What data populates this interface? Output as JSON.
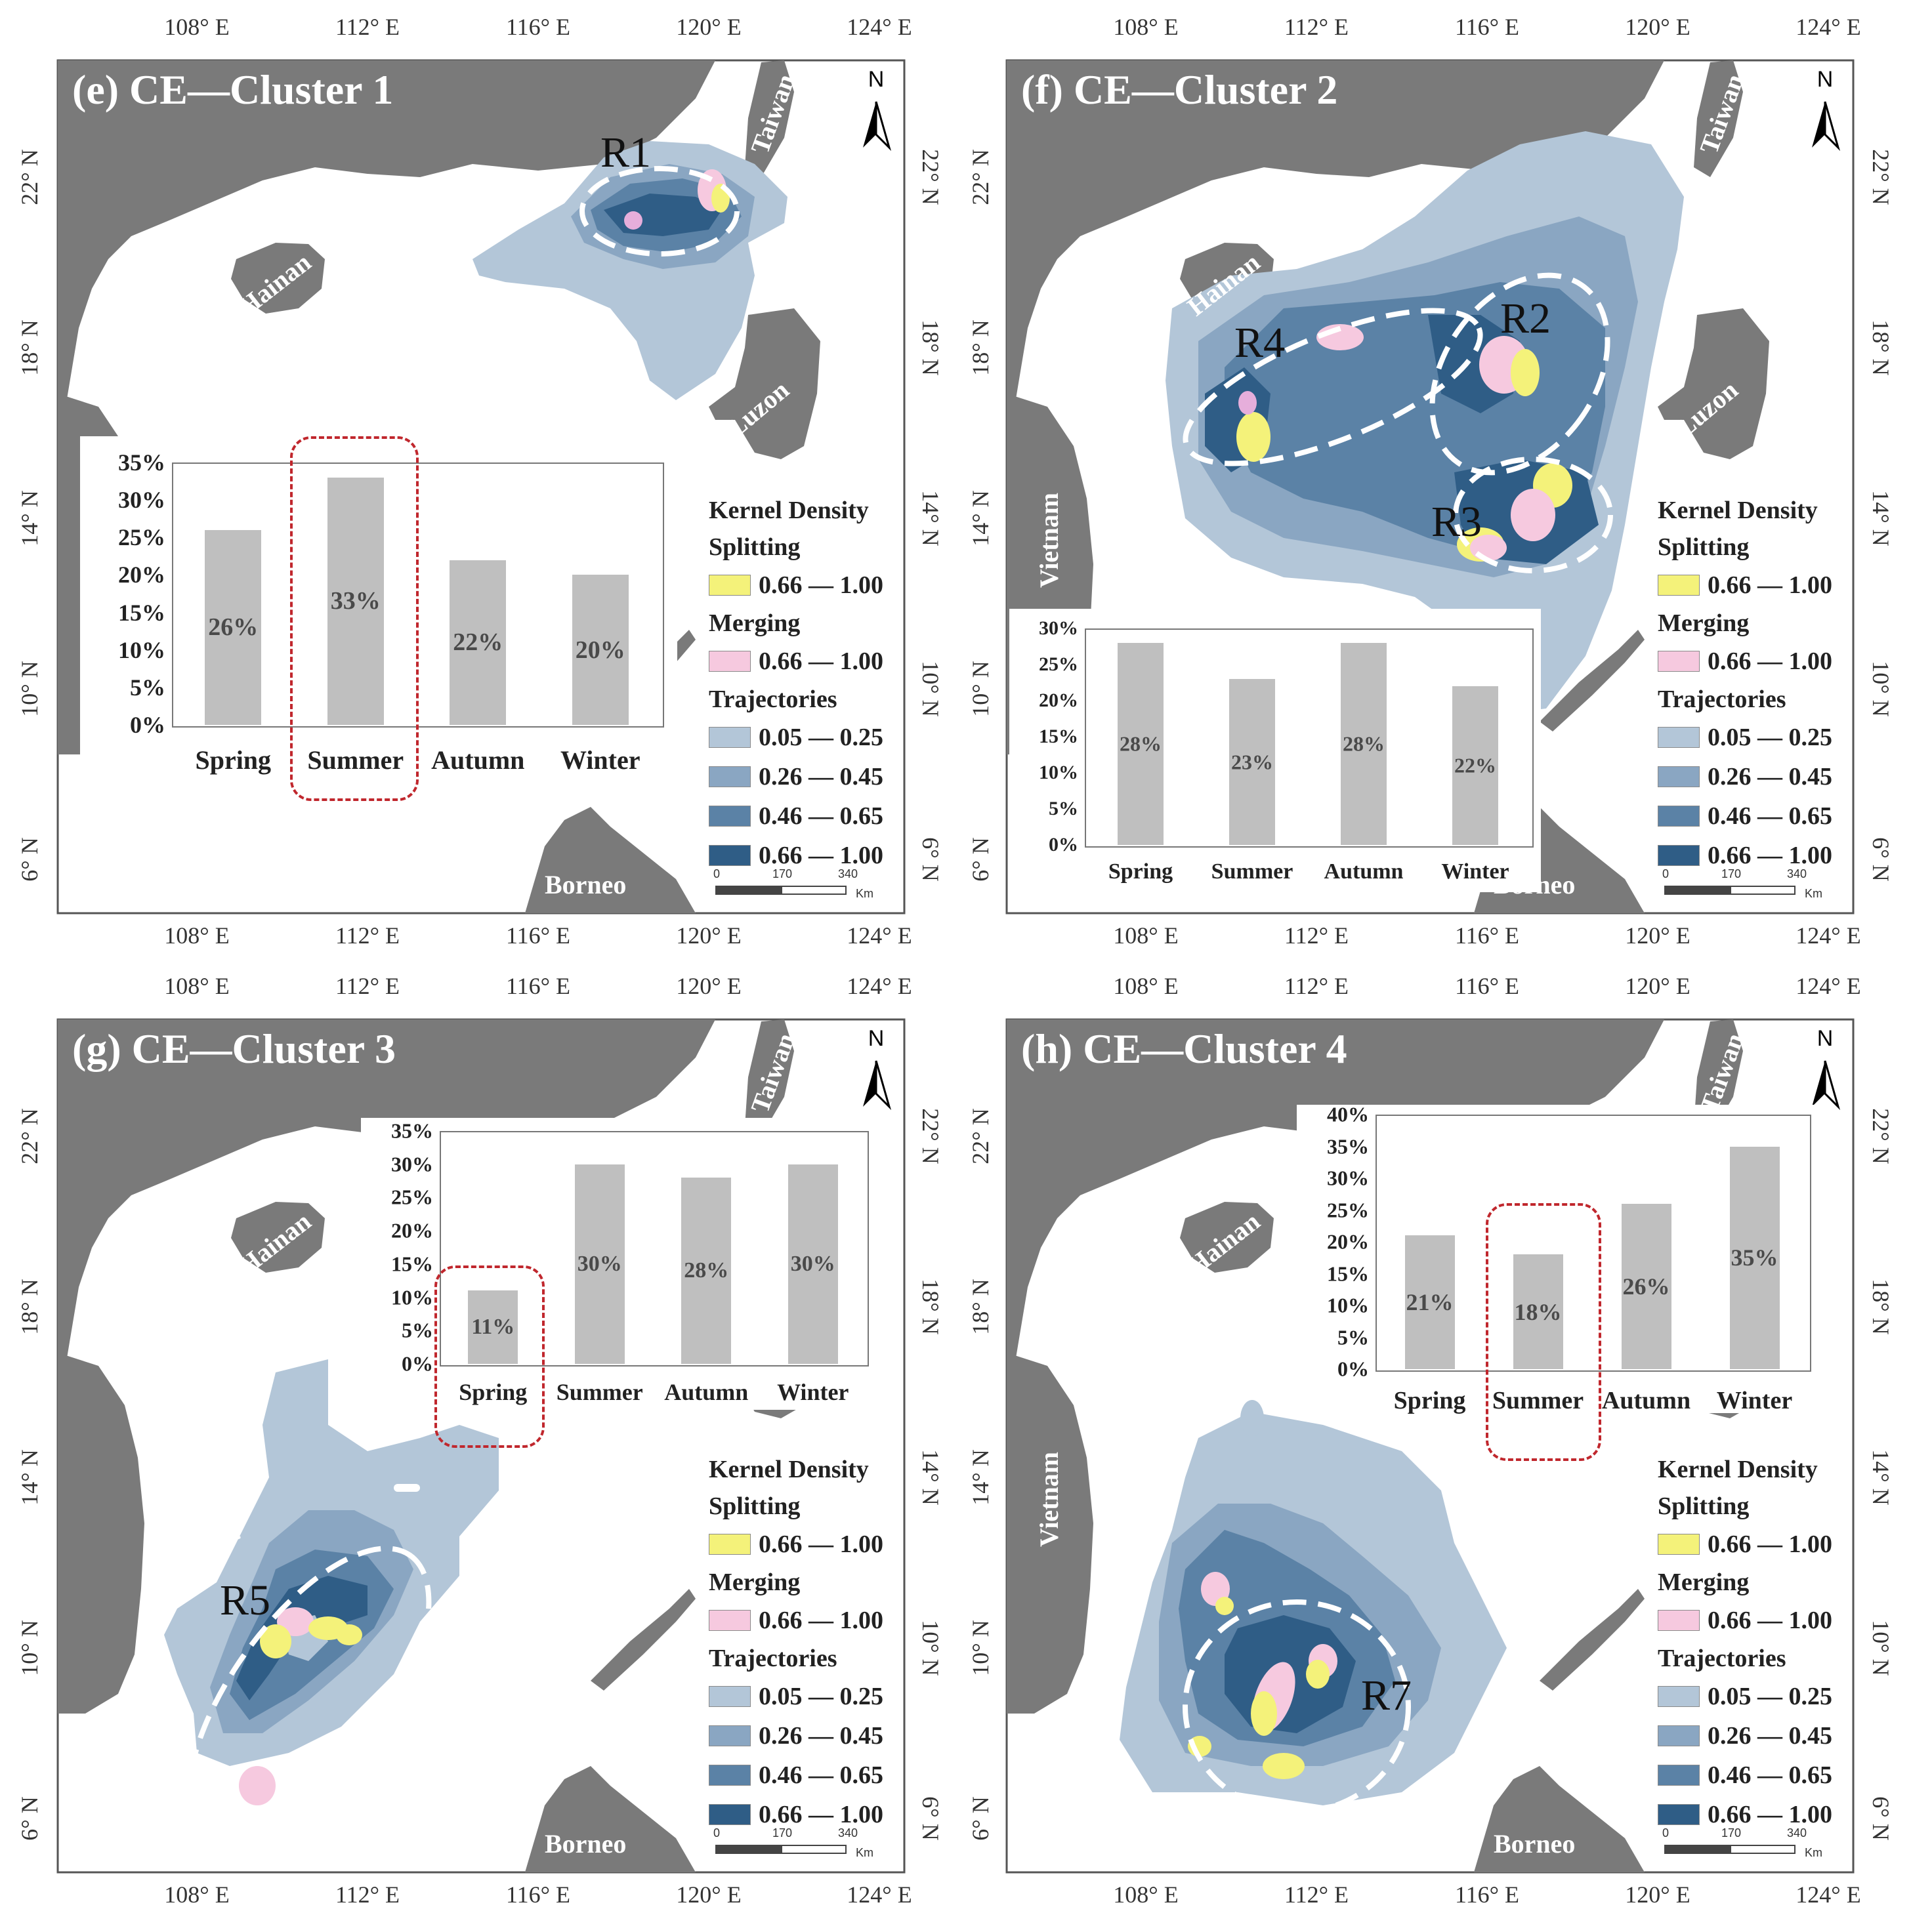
{
  "axes": {
    "lon_labels": [
      "108° E",
      "112° E",
      "116° E",
      "120° E",
      "124° E"
    ],
    "lat_labels": [
      "22° N",
      "18° N",
      "14° N",
      "10° N",
      "6° N"
    ]
  },
  "places": {
    "hainan": "Hainan",
    "taiwan": "Taiwan",
    "luzon": "Luzon",
    "vietnam": "Vietnam",
    "borneo": "Borneo"
  },
  "north_label": "N",
  "scale": {
    "ticks": [
      "0",
      "170",
      "340"
    ],
    "unit": "Km"
  },
  "legend": {
    "heading": "Kernel Density",
    "splitting": "Splitting",
    "merging": "Merging",
    "trajectories": "Trajectories",
    "split_range": "0.66 — 1.00",
    "merge_range": "0.66 — 1.00",
    "traj_ranges": [
      "0.05 — 0.25",
      "0.26 — 0.45",
      "0.46 — 0.65",
      "0.66 — 1.00"
    ],
    "colors": {
      "splitting": "#f4f27a",
      "merging": "#f6c9df",
      "traj": [
        "#b3c6d8",
        "#8aa6c2",
        "#5b82a6",
        "#2f5d86"
      ]
    }
  },
  "map_colors": {
    "land": "#7a7a7a",
    "sea": "#ffffff",
    "region_outline": "#ffffff",
    "highlight": "#c0272d"
  },
  "panels": [
    {
      "title": "(e) CE—Cluster 1",
      "region_labels": [
        "R1"
      ],
      "chart_data": {
        "type": "bar",
        "categories": [
          "Spring",
          "Summer",
          "Autumn",
          "Winter"
        ],
        "values": [
          26,
          33,
          22,
          20
        ],
        "value_labels": [
          "26%",
          "33%",
          "22%",
          "20%"
        ],
        "yticks": [
          "0%",
          "5%",
          "10%",
          "15%",
          "20%",
          "25%",
          "30%",
          "35%"
        ],
        "ylim": [
          0,
          35
        ],
        "highlighted": "Summer"
      }
    },
    {
      "title": "(f) CE—Cluster 2",
      "region_labels": [
        "R2",
        "R3",
        "R4"
      ],
      "chart_data": {
        "type": "bar",
        "categories": [
          "Spring",
          "Summer",
          "Autumn",
          "Winter"
        ],
        "values": [
          28,
          23,
          28,
          22
        ],
        "value_labels": [
          "28%",
          "23%",
          "28%",
          "22%"
        ],
        "yticks": [
          "0%",
          "5%",
          "10%",
          "15%",
          "20%",
          "25%",
          "30%"
        ],
        "ylim": [
          0,
          30
        ],
        "highlighted": null
      }
    },
    {
      "title": "(g) CE—Cluster 3",
      "region_labels": [
        "R5"
      ],
      "chart_data": {
        "type": "bar",
        "categories": [
          "Spring",
          "Summer",
          "Autumn",
          "Winter"
        ],
        "values": [
          11,
          30,
          28,
          30
        ],
        "value_labels": [
          "11%",
          "30%",
          "28%",
          "30%"
        ],
        "yticks": [
          "0%",
          "5%",
          "10%",
          "15%",
          "20%",
          "25%",
          "30%",
          "35%"
        ],
        "ylim": [
          0,
          35
        ],
        "highlighted": "Spring"
      }
    },
    {
      "title": "(h) CE—Cluster 4",
      "region_labels": [
        "R7"
      ],
      "chart_data": {
        "type": "bar",
        "categories": [
          "Spring",
          "Summer",
          "Autumn",
          "Winter"
        ],
        "values": [
          21,
          18,
          26,
          35
        ],
        "value_labels": [
          "21%",
          "18%",
          "26%",
          "35%"
        ],
        "yticks": [
          "0%",
          "5%",
          "10%",
          "15%",
          "20%",
          "25%",
          "30%",
          "35%",
          "40%"
        ],
        "ylim": [
          0,
          40
        ],
        "highlighted": "Summer"
      }
    }
  ]
}
